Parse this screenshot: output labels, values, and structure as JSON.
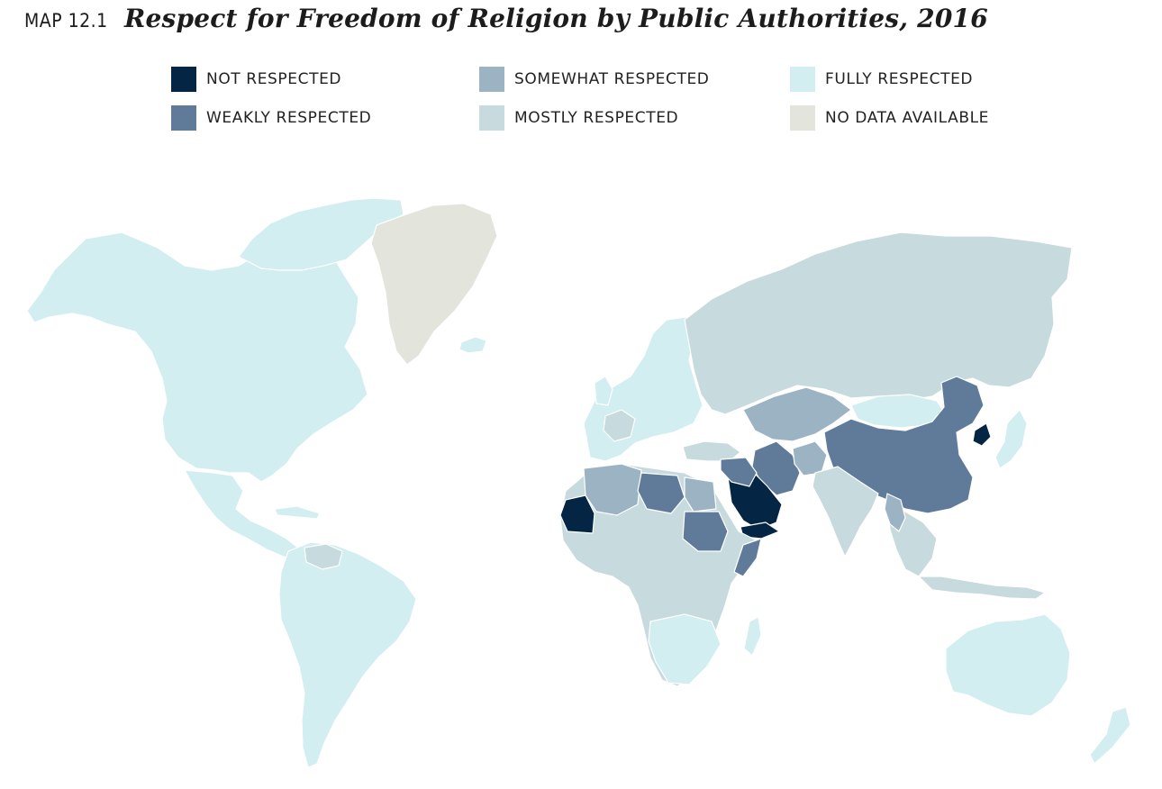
{
  "header": {
    "label": "MAP 12.1",
    "title": "Respect for Freedom of Religion by Public Authorities, 2016"
  },
  "legend": [
    {
      "label": "NOT RESPECTED",
      "color": "#042544"
    },
    {
      "label": "WEAKLY RESPECTED",
      "color": "#5f7b99"
    },
    {
      "label": "SOMEWHAT RESPECTED",
      "color": "#9cb3c4"
    },
    {
      "label": "MOSTLY RESPECTED",
      "color": "#c7dadd"
    },
    {
      "label": "FULLY RESPECTED",
      "color": "#d2eef0"
    },
    {
      "label": "NO DATA AVAILABLE",
      "color": "#e3e4dc"
    }
  ]
}
